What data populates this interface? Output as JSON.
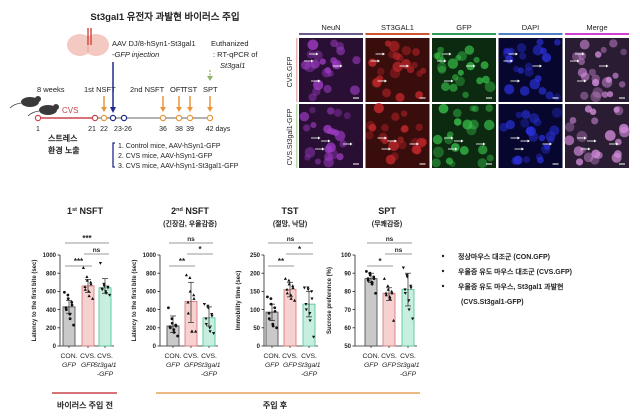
{
  "header": {
    "title": "St3gal1 유전자 과발현 바이러스 주입"
  },
  "timeline": {
    "injection_line1": "AAV DJ/8-hSyn1-St3gal1",
    "injection_line2": "-GFP injection",
    "euthanized_line1": "Euthanized",
    "euthanized_line2": ": RT-qPCR of",
    "euthanized_line3": "St3gal1",
    "age": "8 weeks",
    "first_nsft": "1st NSFT",
    "second_nsft": "2nd NSFT",
    "oft": "OFT",
    "tst": "TST",
    "spt": "SPT",
    "cvs": "CVS",
    "days": [
      "1",
      "21",
      "22",
      "23-26",
      "36",
      "38",
      "39",
      "42 days"
    ],
    "stress_line1": "스트레스",
    "stress_line2": "환경 노출",
    "groups": [
      "1. Control mice, AAV-hSyn1-GFP",
      "2. CVS mice, AAV-hSyn1-GFP",
      "3. CVS mice, AAV-hSyn1-St3gal1-GFP"
    ],
    "colors": {
      "cvs": "#c8454a",
      "test_arrow": "#e8963a",
      "injection_arrow": "#1f2a8a",
      "euthanize_arrow": "#8fb36a"
    }
  },
  "microscopy": {
    "columns": [
      "NeuN",
      "ST3GAL1",
      "GFP",
      "DAPI",
      "Merge"
    ],
    "column_colors": [
      "#6b5a8e",
      "#d0522e",
      "#2e9a55",
      "#4f7fc4",
      "#d23fd0"
    ],
    "rows": [
      "CVS.GFP",
      "CVS.St3gal1-GFP"
    ]
  },
  "periods": {
    "before": "바이러스 주입 전",
    "after": "주입 후",
    "before_color": "#c8454a",
    "after_color": "#e8a05a"
  },
  "legend": {
    "items": [
      "정상마우스 대조군 (CON.GFP)",
      "우울증 유도 마우스 대조군 (CVS.GFP)",
      "우울증 유도 마우스, St3gal1 과발현"
    ],
    "item3_line2": "(CVS.St3gal1-GFP)"
  },
  "bar_colors": [
    "#c9c9c9",
    "#f7d0d0",
    "#c6efdf"
  ],
  "bar_edges": [
    "#555555",
    "#d97c7c",
    "#5cc49a"
  ],
  "chart_data": [
    {
      "type": "bar",
      "title": "1st NSFT",
      "subtitle": "",
      "ylabel": "Latency to the first bite (sec)",
      "ylim": [
        0,
        1000
      ],
      "yticks": [
        0,
        200,
        400,
        600,
        800,
        1000
      ],
      "categories": [
        [
          "CON.",
          "GFP"
        ],
        [
          "CVS.",
          "GFP"
        ],
        [
          "CVS.",
          "St3gal1",
          "-GFP"
        ]
      ],
      "means": [
        430,
        660,
        640
      ],
      "errors": [
        [
          360,
          500
        ],
        [
          590,
          730
        ],
        [
          580,
          740
        ]
      ],
      "points": [
        [
          590,
          560,
          520,
          480,
          450,
          420,
          400,
          350,
          300,
          230
        ],
        [
          860,
          760,
          720,
          700,
          680,
          650,
          620,
          600,
          550,
          520
        ],
        [
          910,
          680,
          660,
          650,
          640,
          630,
          620,
          600,
          580,
          560
        ]
      ],
      "comparisons": [
        {
          "pair": [
            0,
            2
          ],
          "label": "***"
        },
        {
          "pair": [
            1,
            2
          ],
          "label": "ns"
        },
        {
          "pair": [
            0,
            1
          ],
          "label": "***"
        }
      ]
    },
    {
      "type": "bar",
      "title": "2nd NSFT",
      "subtitle": "(긴장감, 우울감증)",
      "ylabel": "Latency to the first bite (sec)",
      "ylim": [
        0,
        1000
      ],
      "yticks": [
        0,
        200,
        400,
        600,
        800,
        1000
      ],
      "categories": [
        [
          "CON.",
          "GFP"
        ],
        [
          "CVS.",
          "GFP"
        ],
        [
          "CVS.",
          "St3gal1",
          "-GFP"
        ]
      ],
      "means": [
        220,
        490,
        310
      ],
      "errors": [
        [
          150,
          330
        ],
        [
          260,
          700
        ],
        [
          220,
          430
        ]
      ],
      "points": [
        [
          420,
          300,
          250,
          230,
          220,
          210,
          200,
          180,
          150,
          110
        ],
        [
          780,
          750,
          600,
          560,
          520,
          480,
          360,
          160,
          160,
          160
        ],
        [
          460,
          440,
          420,
          350,
          330,
          300,
          240,
          200,
          160,
          140
        ]
      ],
      "comparisons": [
        {
          "pair": [
            0,
            2
          ],
          "label": "ns"
        },
        {
          "pair": [
            1,
            2
          ],
          "label": "*"
        },
        {
          "pair": [
            0,
            1
          ],
          "label": "**"
        }
      ]
    },
    {
      "type": "bar",
      "title": "TST",
      "subtitle": "(절망, 낙담)",
      "ylabel": "Immobility time (sec)",
      "ylim": [
        0,
        250
      ],
      "yticks": [
        0,
        50,
        100,
        150,
        200,
        250
      ],
      "categories": [
        [
          "CON.",
          "GFP"
        ],
        [
          "CVS.",
          "GFP"
        ],
        [
          "CVS.",
          "St3gal1",
          "-GFP"
        ]
      ],
      "means": [
        93,
        155,
        115
      ],
      "errors": [
        [
          70,
          115
        ],
        [
          135,
          175
        ],
        [
          80,
          150
        ]
      ],
      "points": [
        [
          135,
          130,
          115,
          105,
          95,
          90,
          75,
          60,
          55,
          50
        ],
        [
          185,
          180,
          170,
          165,
          160,
          155,
          145,
          140,
          130,
          125
        ],
        [
          160,
          160,
          155,
          150,
          130,
          115,
          100,
          90,
          70,
          25
        ]
      ],
      "comparisons": [
        {
          "pair": [
            0,
            2
          ],
          "label": "ns"
        },
        {
          "pair": [
            1,
            2
          ],
          "label": "*"
        },
        {
          "pair": [
            0,
            1
          ],
          "label": "**"
        }
      ]
    },
    {
      "type": "bar",
      "title": "SPT",
      "subtitle": "(무쾌감증)",
      "ylabel": "Sucrose preference (%)",
      "ylim": [
        50,
        100
      ],
      "yticks": [
        50,
        60,
        70,
        80,
        90,
        100
      ],
      "categories": [
        [
          "CON.",
          "GFP"
        ],
        [
          "CVS.",
          "GFP"
        ],
        [
          "CVS.",
          "St3gal1",
          "-GFP"
        ]
      ],
      "means": [
        87,
        79,
        81
      ],
      "errors": [
        [
          85,
          90
        ],
        [
          75,
          82
        ],
        [
          72,
          90
        ]
      ],
      "points": [
        [
          91,
          90,
          89,
          88,
          87,
          87,
          86,
          85,
          84,
          79
        ],
        [
          87,
          83,
          81,
          80,
          79,
          79,
          78,
          77,
          76,
          64
        ],
        [
          93,
          89,
          88,
          83,
          82,
          81,
          79,
          75,
          70,
          65
        ]
      ],
      "comparisons": [
        {
          "pair": [
            0,
            2
          ],
          "label": "ns"
        },
        {
          "pair": [
            1,
            2
          ],
          "label": "ns"
        },
        {
          "pair": [
            0,
            1
          ],
          "label": "*"
        }
      ]
    }
  ]
}
